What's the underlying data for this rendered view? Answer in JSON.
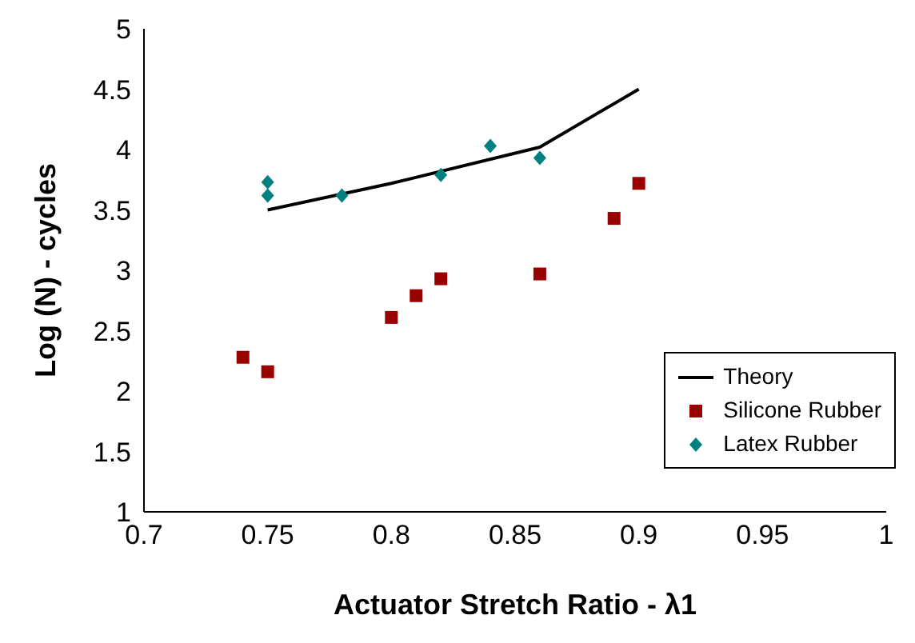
{
  "chart_data": {
    "type": "scatter",
    "xlabel": "Actuator Stretch Ratio - λ1",
    "ylabel": "Log (N) - cycles",
    "xlim": [
      0.7,
      1
    ],
    "xticks": [
      0.7,
      0.75,
      0.8,
      0.85,
      0.9,
      0.95,
      1
    ],
    "ylim": [
      1,
      5
    ],
    "yticks": [
      1,
      1.5,
      2,
      2.5,
      3,
      3.5,
      4,
      4.5,
      5
    ],
    "grid": false,
    "legend": "bottom right",
    "series": [
      {
        "name": "Theory",
        "type": "line",
        "marker": "none",
        "color": "#000000",
        "x": [
          0.75,
          0.8,
          0.86,
          0.9
        ],
        "values": [
          3.5,
          3.72,
          4.02,
          4.5
        ]
      },
      {
        "name": "Silicone Rubber",
        "marker": "square",
        "color": "#990000",
        "x": [
          0.74,
          0.75,
          0.8,
          0.81,
          0.82,
          0.86,
          0.89,
          0.9
        ],
        "values": [
          2.28,
          2.16,
          2.61,
          2.79,
          2.93,
          2.97,
          3.43,
          3.72
        ]
      },
      {
        "name": "Latex Rubber",
        "marker": "diamond",
        "color": "#008080",
        "x": [
          0.75,
          0.75,
          0.78,
          0.82,
          0.84,
          0.86
        ],
        "values": [
          3.73,
          3.62,
          3.62,
          3.79,
          4.03,
          3.93
        ]
      }
    ]
  }
}
